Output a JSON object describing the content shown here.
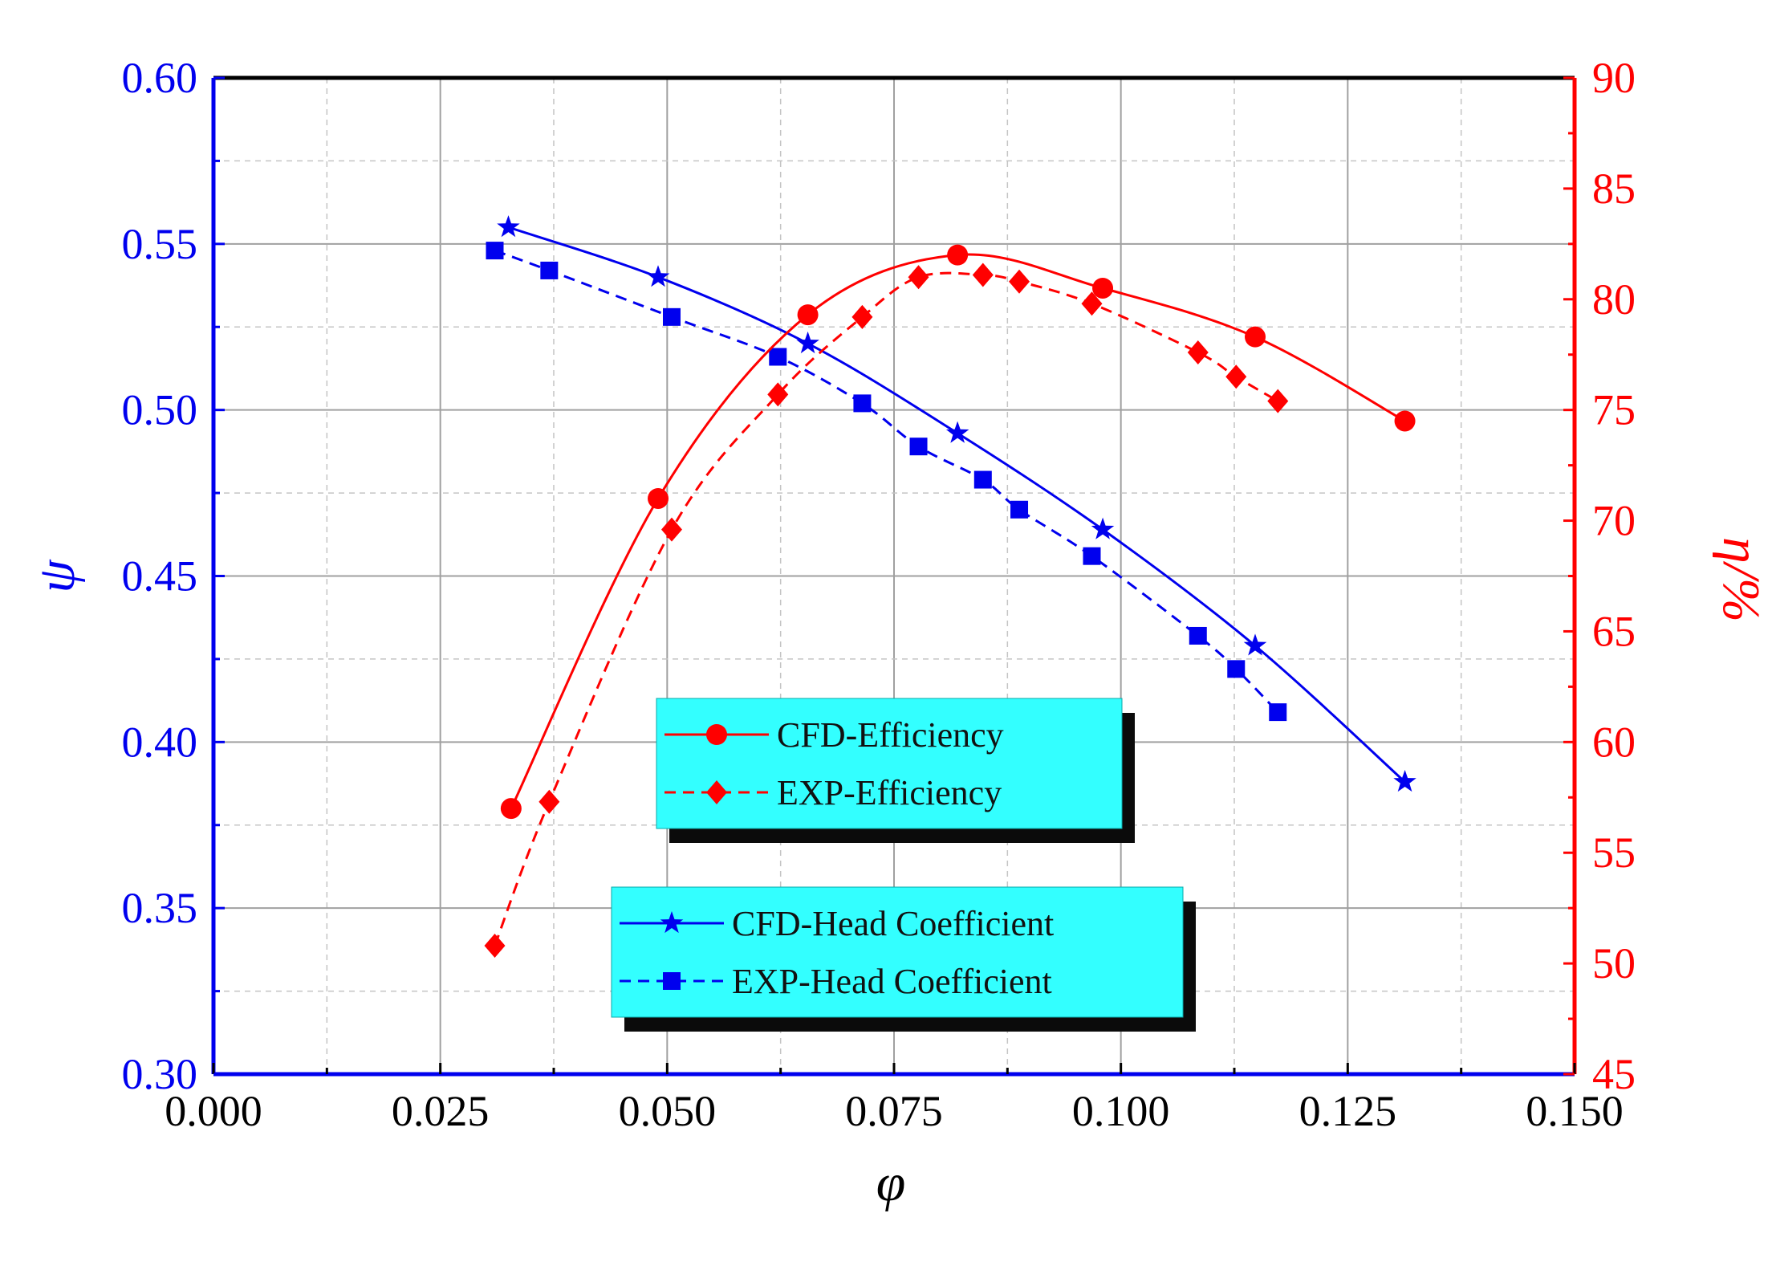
{
  "chart_data": {
    "type": "line",
    "title": "",
    "xlabel": "φ",
    "ylabel_left": "ψ",
    "ylabel_right": "η/%",
    "xlim": [
      0.0,
      0.15
    ],
    "ylim_left": [
      0.3,
      0.6
    ],
    "ylim_right": [
      45,
      90
    ],
    "x_ticks": [
      "0.000",
      "0.025",
      "0.050",
      "0.075",
      "0.100",
      "0.125",
      "0.150"
    ],
    "y_left_ticks": [
      "0.30",
      "0.35",
      "0.40",
      "0.45",
      "0.50",
      "0.55",
      "0.60"
    ],
    "y_right_ticks": [
      "45",
      "50",
      "55",
      "60",
      "65",
      "70",
      "75",
      "80",
      "85",
      "90"
    ],
    "grid": true,
    "colors": {
      "left_axis": "#0000ee",
      "right_axis": "#ff0000",
      "legend_bg": "#33ffff",
      "legend_shadow": "#0b0b0b"
    },
    "legends": [
      {
        "position": "center",
        "entries": [
          "CFD-Efficiency",
          "EXP-Efficiency"
        ]
      },
      {
        "position": "bottom-center",
        "entries": [
          "CFD-Head Coefficient",
          "EXP-Head Coefficient"
        ]
      }
    ],
    "series": [
      {
        "name": "CFD-Head Coefficient",
        "axis": "left",
        "color": "#0000ee",
        "marker": "star",
        "line": "solid",
        "x": [
          0.0325,
          0.049,
          0.0655,
          0.082,
          0.098,
          0.1148,
          0.1313
        ],
        "y": [
          0.555,
          0.54,
          0.52,
          0.493,
          0.464,
          0.429,
          0.388
        ]
      },
      {
        "name": "EXP-Head Coefficient",
        "axis": "left",
        "color": "#0000ee",
        "marker": "square",
        "line": "dashed",
        "x": [
          0.031,
          0.037,
          0.0505,
          0.0622,
          0.0715,
          0.0777,
          0.0848,
          0.0888,
          0.0968,
          0.1085,
          0.1127,
          0.1173
        ],
        "y": [
          0.548,
          0.542,
          0.528,
          0.516,
          0.502,
          0.489,
          0.479,
          0.47,
          0.456,
          0.432,
          0.422,
          0.409
        ]
      },
      {
        "name": "CFD-Efficiency",
        "axis": "right",
        "color": "#ff0000",
        "marker": "circle",
        "line": "solid",
        "x": [
          0.0328,
          0.049,
          0.0655,
          0.082,
          0.098,
          0.1148,
          0.1313
        ],
        "y": [
          57.0,
          71.0,
          79.3,
          82.0,
          80.5,
          78.3,
          74.5
        ]
      },
      {
        "name": "EXP-Efficiency",
        "axis": "right",
        "color": "#ff0000",
        "marker": "diamond",
        "line": "dashed",
        "x": [
          0.031,
          0.037,
          0.0505,
          0.0622,
          0.0715,
          0.0777,
          0.0848,
          0.0888,
          0.0968,
          0.1085,
          0.1127,
          0.1173
        ],
        "y": [
          50.8,
          57.3,
          69.6,
          75.7,
          79.2,
          81.0,
          81.1,
          80.8,
          79.8,
          77.6,
          76.5,
          75.4
        ]
      }
    ]
  }
}
